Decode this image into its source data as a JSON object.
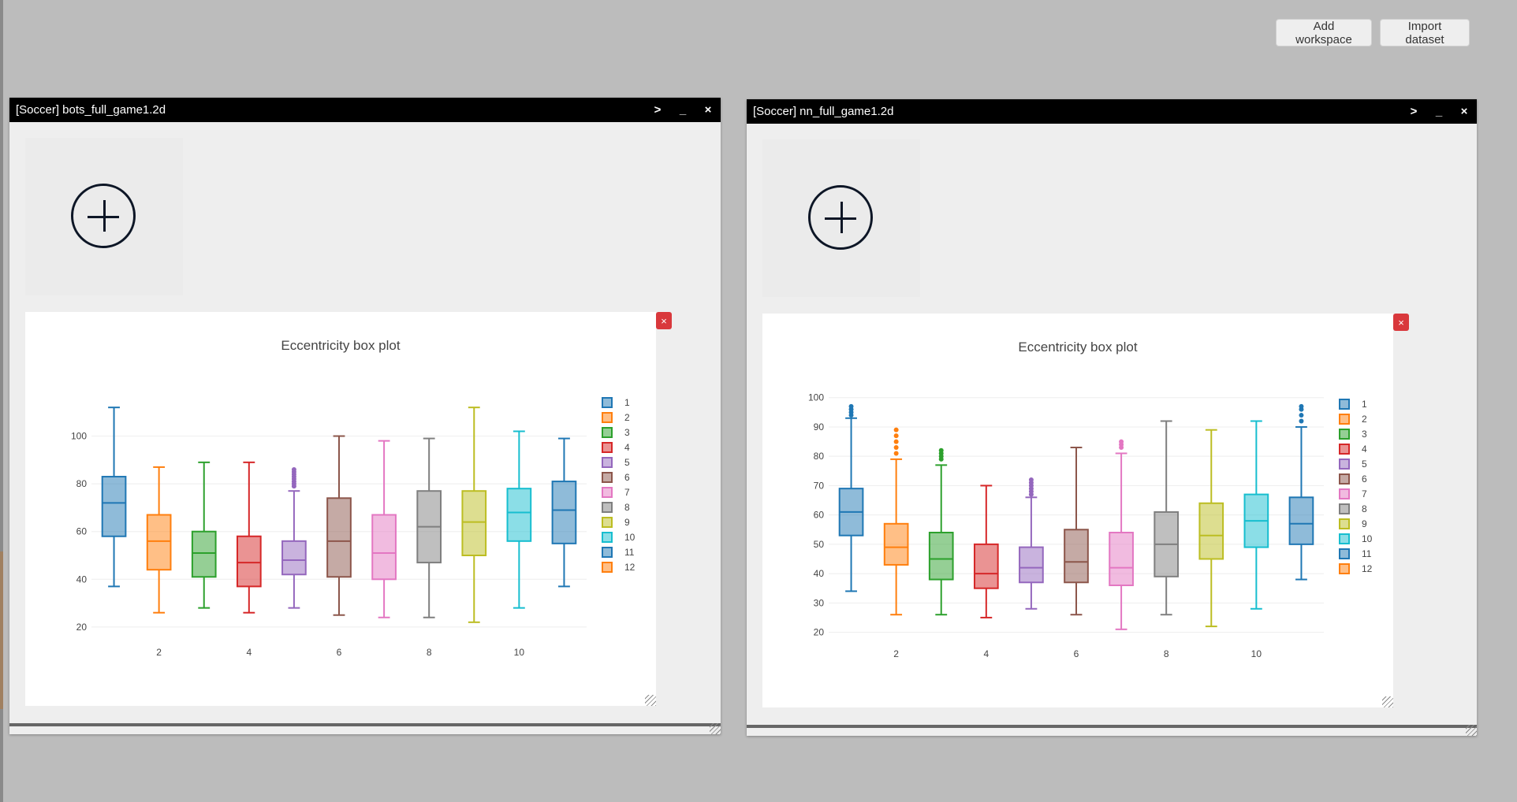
{
  "toolbar": {
    "add_workspace_label": "Add workspace",
    "import_dataset_label": "Import dataset"
  },
  "window_controls": {
    "expand": ">",
    "minimize": "_",
    "close": "×"
  },
  "windows": [
    {
      "title": "[Soccer] bots_full_game1.2d",
      "chart_close": "×"
    },
    {
      "title": "[Soccer] nn_full_game1.2d",
      "chart_close": "×"
    }
  ],
  "colors": [
    "#1f77b4",
    "#ff7f0e",
    "#2ca02c",
    "#d62728",
    "#9467bd",
    "#8c564b",
    "#e377c2",
    "#7f7f7f",
    "#bcbd22",
    "#17becf",
    "#1f77b4",
    "#ff7f0e"
  ],
  "chart_data": [
    {
      "type": "box",
      "title": "Eccentricity box plot",
      "ylim": [
        16,
        118
      ],
      "y_ticks": [
        20,
        40,
        60,
        80,
        100
      ],
      "x_ticks": [
        2,
        4,
        6,
        8,
        10
      ],
      "legend": [
        "1",
        "2",
        "3",
        "4",
        "5",
        "6",
        "7",
        "8",
        "9",
        "10",
        "11",
        "12"
      ],
      "boxes": [
        {
          "x": 1,
          "min": 37,
          "q1": 58,
          "median": 72,
          "q3": 83,
          "max": 112,
          "outliers": []
        },
        {
          "x": 2,
          "min": 26,
          "q1": 44,
          "median": 56,
          "q3": 67,
          "max": 87,
          "outliers": []
        },
        {
          "x": 3,
          "min": 28,
          "q1": 41,
          "median": 51,
          "q3": 60,
          "max": 89,
          "outliers": []
        },
        {
          "x": 4,
          "min": 26,
          "q1": 37,
          "median": 47,
          "q3": 58,
          "max": 89,
          "outliers": []
        },
        {
          "x": 5,
          "min": 28,
          "q1": 42,
          "median": 48,
          "q3": 56,
          "max": 77,
          "outliers": [
            79,
            80,
            81,
            82,
            83,
            84,
            85,
            86
          ]
        },
        {
          "x": 6,
          "min": 25,
          "q1": 41,
          "median": 56,
          "q3": 74,
          "max": 100,
          "outliers": []
        },
        {
          "x": 7,
          "min": 24,
          "q1": 40,
          "median": 51,
          "q3": 67,
          "max": 98,
          "outliers": []
        },
        {
          "x": 8,
          "min": 24,
          "q1": 47,
          "median": 62,
          "q3": 77,
          "max": 99,
          "outliers": []
        },
        {
          "x": 9,
          "min": 22,
          "q1": 50,
          "median": 64,
          "q3": 77,
          "max": 112,
          "outliers": []
        },
        {
          "x": 10,
          "min": 28,
          "q1": 56,
          "median": 68,
          "q3": 78,
          "max": 102,
          "outliers": []
        },
        {
          "x": 11,
          "min": 37,
          "q1": 55,
          "median": 69,
          "q3": 81,
          "max": 99,
          "outliers": []
        }
      ]
    },
    {
      "type": "box",
      "title": "Eccentricity box plot",
      "ylim": [
        18,
        101
      ],
      "y_ticks": [
        20,
        30,
        40,
        50,
        60,
        70,
        80,
        90,
        100
      ],
      "x_ticks": [
        2,
        4,
        6,
        8,
        10
      ],
      "legend": [
        "1",
        "2",
        "3",
        "4",
        "5",
        "6",
        "7",
        "8",
        "9",
        "10",
        "11",
        "12"
      ],
      "boxes": [
        {
          "x": 1,
          "min": 34,
          "q1": 53,
          "median": 61,
          "q3": 69,
          "max": 93,
          "outliers": [
            94,
            95,
            96,
            97
          ]
        },
        {
          "x": 2,
          "min": 26,
          "q1": 43,
          "median": 49,
          "q3": 57,
          "max": 79,
          "outliers": [
            81,
            83,
            85,
            87,
            89
          ]
        },
        {
          "x": 3,
          "min": 26,
          "q1": 38,
          "median": 45,
          "q3": 54,
          "max": 77,
          "outliers": [
            79,
            80,
            81,
            82
          ]
        },
        {
          "x": 4,
          "min": 25,
          "q1": 35,
          "median": 40,
          "q3": 50,
          "max": 70,
          "outliers": []
        },
        {
          "x": 5,
          "min": 28,
          "q1": 37,
          "median": 42,
          "q3": 49,
          "max": 66,
          "outliers": [
            67,
            68,
            69,
            70,
            71,
            72
          ]
        },
        {
          "x": 6,
          "min": 26,
          "q1": 37,
          "median": 44,
          "q3": 55,
          "max": 83,
          "outliers": []
        },
        {
          "x": 7,
          "min": 21,
          "q1": 36,
          "median": 42,
          "q3": 54,
          "max": 81,
          "outliers": [
            83,
            84,
            85
          ]
        },
        {
          "x": 8,
          "min": 26,
          "q1": 39,
          "median": 50,
          "q3": 61,
          "max": 92,
          "outliers": []
        },
        {
          "x": 9,
          "min": 22,
          "q1": 45,
          "median": 53,
          "q3": 64,
          "max": 89,
          "outliers": []
        },
        {
          "x": 10,
          "min": 28,
          "q1": 49,
          "median": 58,
          "q3": 67,
          "max": 92,
          "outliers": []
        },
        {
          "x": 11,
          "min": 38,
          "q1": 50,
          "median": 57,
          "q3": 66,
          "max": 90,
          "outliers": [
            92,
            94,
            96,
            97
          ]
        }
      ]
    }
  ]
}
